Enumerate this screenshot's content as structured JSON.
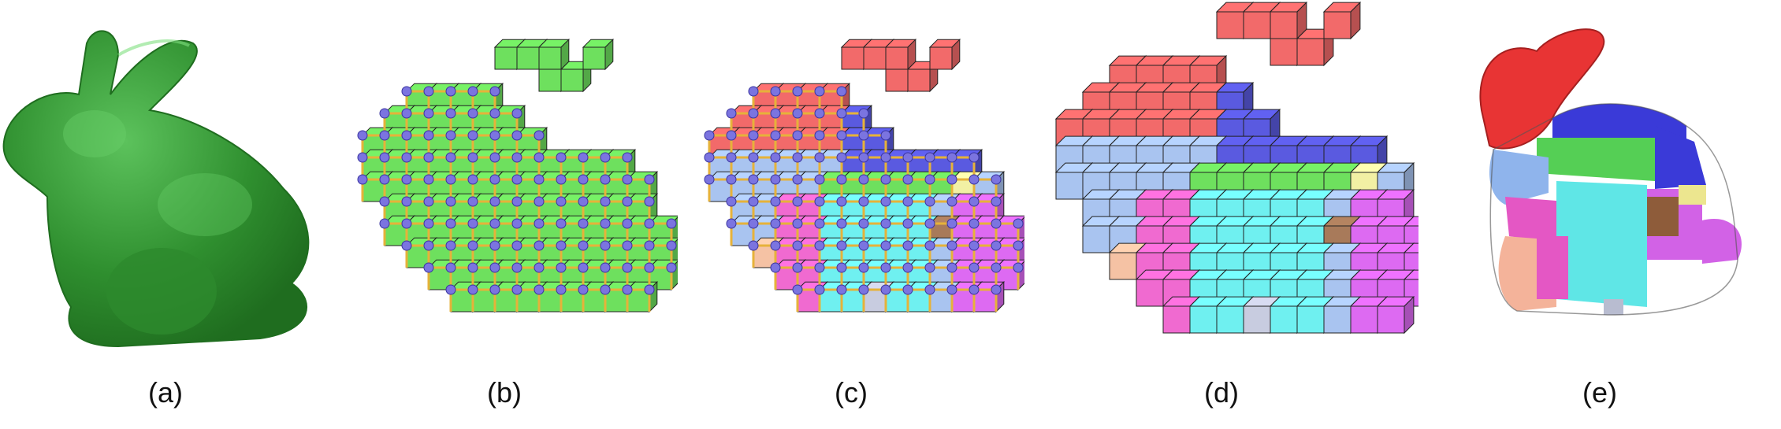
{
  "figure": {
    "panels": [
      {
        "caption": "(a)"
      },
      {
        "caption": "(b)"
      },
      {
        "caption": "(c)"
      },
      {
        "caption": "(d)"
      },
      {
        "caption": "(e)"
      }
    ]
  },
  "colors": {
    "mesh_green": "#3a9a3a",
    "cube_green": "#6ee05e",
    "node_purple": "#7b74e0",
    "edge_orange": "#e6b23a",
    "red": "#f26a6a",
    "blue": "#5a5ae0",
    "cyan": "#6ff0f0",
    "light_blue": "#a9c4f0",
    "pink": "#f06ad0",
    "magenta": "#dd6af2",
    "peach": "#f5c2a4",
    "yellow": "#f2f0a4",
    "brown": "#a87a5a",
    "grey": "#c8cce0"
  }
}
